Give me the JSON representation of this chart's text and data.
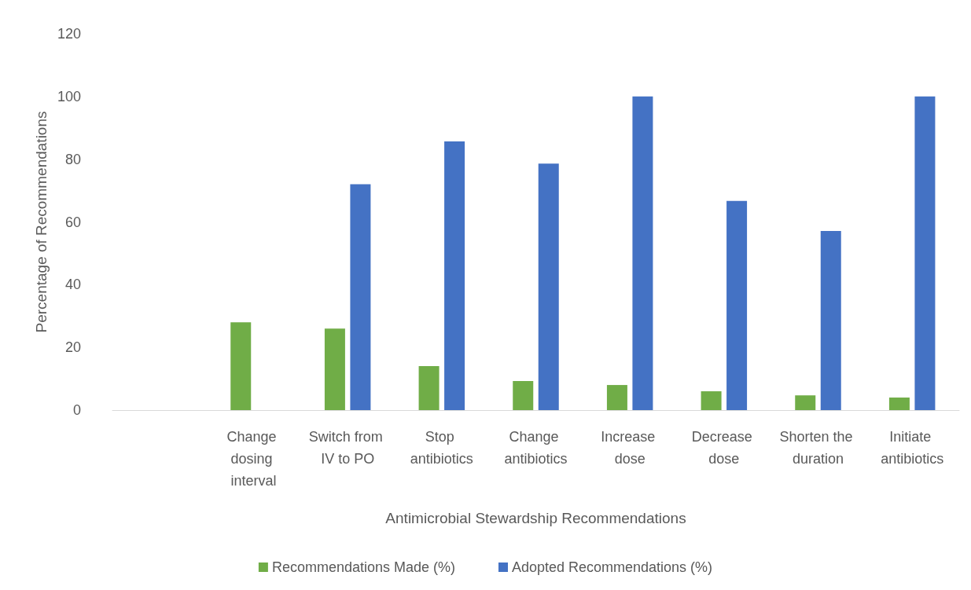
{
  "chart_data": {
    "type": "bar",
    "xlabel": "Antimicrobial Stewardship Recommendations",
    "ylabel": "Percentage of Recommendations",
    "categories": [
      null,
      "Change dosing interval",
      "Switch from IV to PO",
      "Stop antibiotics",
      "Change antibiotics",
      "Increase dose",
      "Decrease dose",
      "Shorten the duration",
      "Initiate antibiotics"
    ],
    "series": [
      {
        "name": "Recommendations Made (%)",
        "color": "#70ad47",
        "values": [
          null,
          28,
          26,
          14,
          9.3,
          8,
          6,
          4.7,
          4
        ]
      },
      {
        "name": "Adopted Recommendations (%)",
        "color": "#4472c4",
        "values": [
          null,
          null,
          72,
          85.7,
          78.6,
          100,
          66.7,
          57.1,
          100
        ]
      }
    ],
    "ylim": [
      0,
      120
    ],
    "yticks": [
      0,
      20,
      40,
      60,
      80,
      100,
      120
    ],
    "grid": false,
    "legend": "bottom"
  }
}
